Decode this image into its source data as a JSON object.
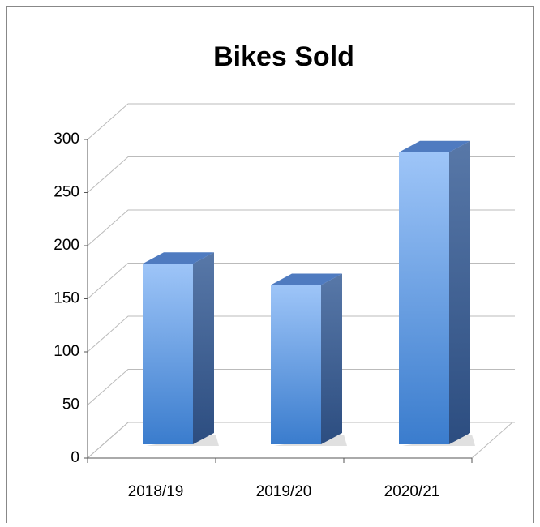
{
  "chart_data": {
    "type": "bar3d",
    "title": "Bikes Sold",
    "categories": [
      "2018/19",
      "2019/20",
      "2020/21"
    ],
    "values": [
      170,
      150,
      275
    ],
    "color": "#4a86d8",
    "ylim": [
      0,
      300
    ],
    "yticks": [
      0,
      50,
      100,
      150,
      200,
      250,
      300
    ],
    "grid": true
  }
}
